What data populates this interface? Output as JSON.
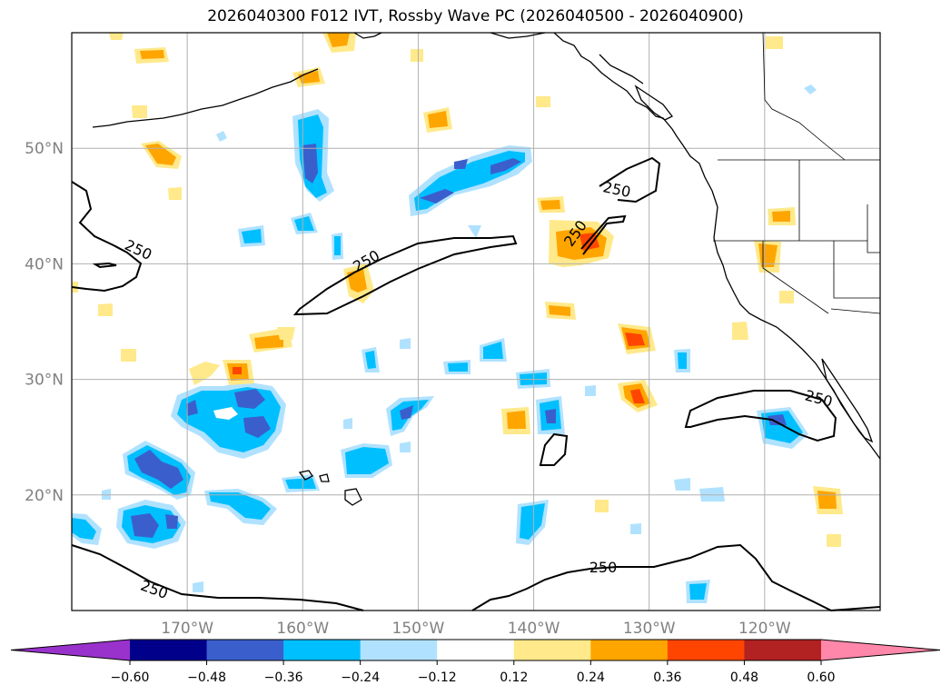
{
  "title": "2026040300 F012 IVT, Rossby Wave PC (2026040500 - 2026040900)",
  "map": {
    "lon_range": [
      180,
      110
    ],
    "lat_range": [
      10,
      60
    ],
    "lon_ticks": [
      "170°W",
      "160°W",
      "150°W",
      "140°W",
      "130°W",
      "120°W"
    ],
    "lon_tick_values": [
      170,
      160,
      150,
      140,
      130,
      120
    ],
    "lat_ticks": [
      "20°N",
      "30°N",
      "40°N",
      "50°N"
    ],
    "lat_tick_values": [
      20,
      30,
      40,
      50
    ],
    "grid": true,
    "contour_value": "250"
  },
  "colorbar": {
    "ticks": [
      "−0.60",
      "−0.48",
      "−0.36",
      "−0.24",
      "−0.12",
      "0.12",
      "0.24",
      "0.36",
      "0.48",
      "0.60"
    ],
    "colors": {
      "under": "#9932cc",
      "bins": [
        "#00008b",
        "#3a5fcd",
        "#00bfff",
        "#b0e2ff",
        "#ffffff",
        "#ffe98a",
        "#ffa500",
        "#ff4500",
        "#b22222"
      ],
      "over": "#ff88aa"
    }
  },
  "colors": {
    "neg_light": "#b0e2ff",
    "neg_mid": "#00bfff",
    "neg_dark": "#3a5fcd",
    "pos_light": "#ffe98a",
    "pos_mid": "#ffa500",
    "pos_dark": "#ff4500",
    "grid": "#b0b0b0",
    "coast": "#000000"
  }
}
